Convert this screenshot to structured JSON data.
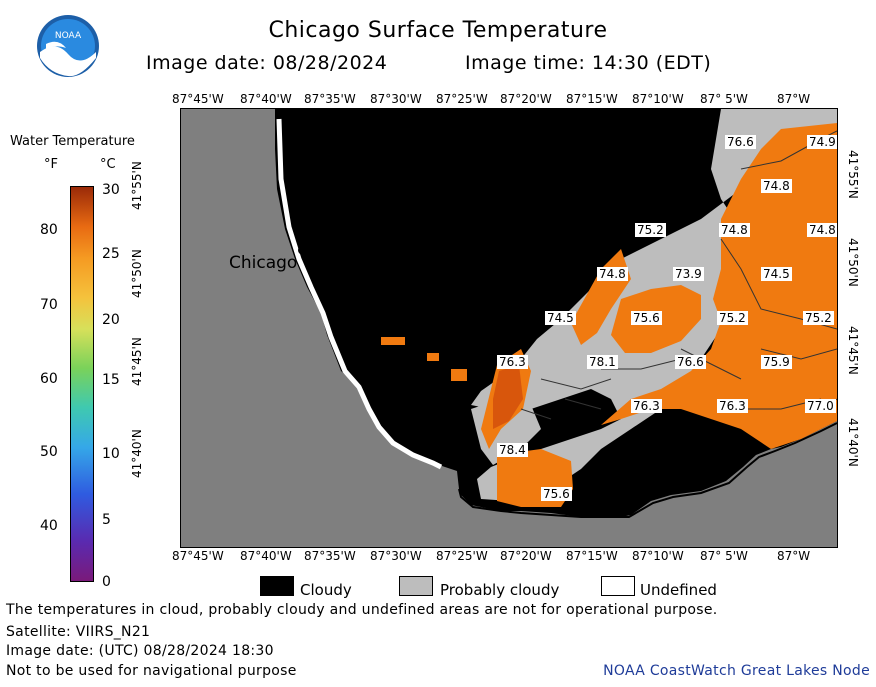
{
  "header": {
    "logo_text": "NOAA",
    "title": "Chicago Surface Temperature",
    "image_date": "Image date: 08/28/2024",
    "image_time": "Image time: 14:30 (EDT)"
  },
  "legend": {
    "title": "Water Temperature",
    "unit_f": "°F",
    "unit_c": "°C",
    "f_ticks": [
      "80",
      "70",
      "60",
      "50",
      "40"
    ],
    "c_ticks": [
      "30",
      "25",
      "20",
      "15",
      "10",
      "5",
      "0"
    ]
  },
  "map": {
    "lon_labels": [
      "87°45'W",
      "87°40'W",
      "87°35'W",
      "87°30'W",
      "87°25'W",
      "87°20'W",
      "87°15'W",
      "87°10'W",
      "87° 5'W",
      "87°W"
    ],
    "lat_labels": [
      "41°55'N",
      "41°50'N",
      "41°45'N",
      "41°40'N"
    ],
    "city": "Chicago",
    "temperature_labels": [
      "76.6",
      "74.9",
      "74.8",
      "75.2",
      "74.8",
      "74.8",
      "74.8",
      "73.9",
      "74.5",
      "74.5",
      "75.6",
      "75.2",
      "75.2",
      "76.3",
      "78.1",
      "76.6",
      "75.9",
      "76.3",
      "76.3",
      "77.0",
      "78.4",
      "75.6"
    ]
  },
  "key": {
    "cloudy": "Cloudy",
    "probably_cloudy": "Probably cloudy",
    "undefined": "Undefined"
  },
  "footer": {
    "note": "The temperatures in cloud, probably cloudy and undefined areas are not for operational purpose.",
    "satellite": "Satellite: VIIRS_N21",
    "utc": "Image date: (UTC) 08/28/2024  18:30",
    "nav": "Not to be used for navigational purpose",
    "credit": "NOAA CoastWatch Great Lakes Node"
  },
  "colors": {
    "land": "#7f7f7f",
    "cloud": "#000000",
    "probably_cloudy": "#bdbdbd",
    "water_warm": "#f07a10",
    "water_hot": "#d8560c"
  }
}
